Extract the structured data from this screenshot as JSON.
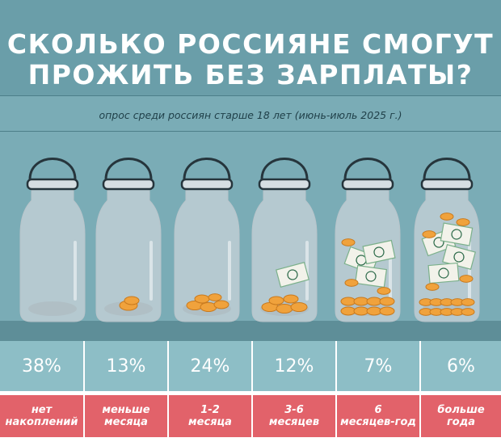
{
  "title_line1": "СКОЛЬКО РОССИЯНЕ СМОГУТ",
  "title_line2": "ПРОЖИТЬ БЕЗ ЗАРПЛАТЫ?",
  "subtitle": "опрос среди россиян старше 18 лет (июнь-июль 2025 г.)",
  "colors": {
    "background": "#7aacb6",
    "label_band": "#e2626a",
    "percent_band": "#8dbec6",
    "coin": "#f0a23c",
    "banknote": "#f2f2ea"
  },
  "chart_data": {
    "type": "bar",
    "categories": [
      "нет\nнакоплений",
      "меньше\nмесяца",
      "1-2\nмесяца",
      "3-6\nмесяцев",
      "6\nмесяцев-год",
      "больше\nгода"
    ],
    "values": [
      38,
      13,
      24,
      12,
      7,
      6
    ],
    "value_labels": [
      "38%",
      "13%",
      "24%",
      "12%",
      "7%",
      "6%"
    ],
    "title": "СКОЛЬКО РОССИЯНЕ СМОГУТ ПРОЖИТЬ БЕЗ ЗАРПЛАТЫ?",
    "unit": "%"
  }
}
